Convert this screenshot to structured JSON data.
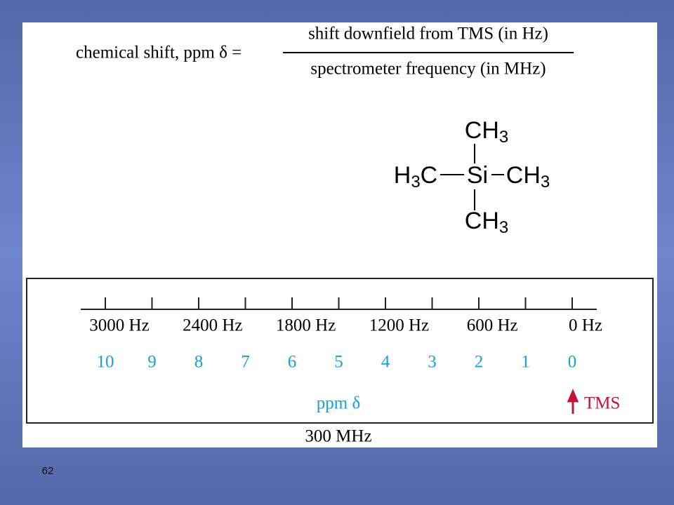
{
  "formula": {
    "lhs": "chemical shift, ppm δ =",
    "numerator": "shift downfield from TMS (in Hz)",
    "denominator": "spectrometer frequency (in MHz)"
  },
  "molecule": {
    "top": [
      {
        "text": "CH"
      },
      {
        "text": "3",
        "sub": true
      }
    ],
    "left": [
      {
        "text": "H"
      },
      {
        "text": "3",
        "sub": true
      },
      {
        "text": "C"
      }
    ],
    "center": [
      {
        "text": "Si"
      }
    ],
    "right": [
      {
        "text": "CH"
      },
      {
        "text": "3",
        "sub": true
      }
    ],
    "bottom": [
      {
        "text": "CH"
      },
      {
        "text": "3",
        "sub": true
      }
    ]
  },
  "scale": {
    "hz_labels": [
      "3000 Hz",
      "2400 Hz",
      "1800 Hz",
      "1200 Hz",
      "600 Hz",
      "0 Hz"
    ],
    "ppm_labels": [
      "10",
      "9",
      "8",
      "7",
      "6",
      "5",
      "4",
      "3",
      "2",
      "1",
      "0"
    ],
    "ppm_title": "ppm δ",
    "tms": "TMS",
    "frequency": "300 MHz"
  },
  "slide_number": "62"
}
